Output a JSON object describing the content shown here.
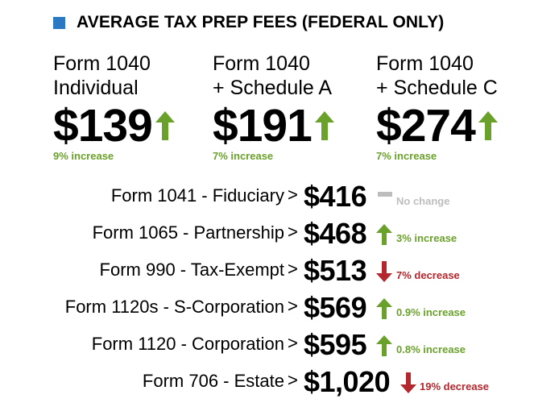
{
  "header": {
    "title": "AVERAGE TAX PREP FEES (FEDERAL ONLY)"
  },
  "top_items": [
    {
      "line1": "Form 1040",
      "line2": "Individual",
      "amount": "$139",
      "direction": "up",
      "change": "9% increase"
    },
    {
      "line1": "Form 1040",
      "line2": "+ Schedule A",
      "amount": "$191",
      "direction": "up",
      "change": "7% increase"
    },
    {
      "line1": "Form 1040",
      "line2": "+ Schedule C",
      "amount": "$274",
      "direction": "up",
      "change": "7% increase"
    }
  ],
  "rows": [
    {
      "label": "Form 1041 - Fiduciary",
      "amount": "$416",
      "direction": "none",
      "change": "No change"
    },
    {
      "label": "Form 1065 - Partnership",
      "amount": "$468",
      "direction": "up",
      "change": "3% increase"
    },
    {
      "label": "Form 990 - Tax-Exempt",
      "amount": "$513",
      "direction": "down",
      "change": "7% decrease"
    },
    {
      "label": "Form 1120s - S-Corporation",
      "amount": "$569",
      "direction": "up",
      "change": "0.9% increase"
    },
    {
      "label": "Form 1120 - Corporation",
      "amount": "$595",
      "direction": "up",
      "change": "0.8% increase"
    },
    {
      "label": "Form 706 - Estate",
      "amount": "$1,020",
      "direction": "down",
      "change": "19% decrease"
    }
  ],
  "separator": ">",
  "colors": {
    "square": "#2a79c2",
    "up": "#6aa12b",
    "down": "#b3272d",
    "none": "#bdbdbd"
  }
}
